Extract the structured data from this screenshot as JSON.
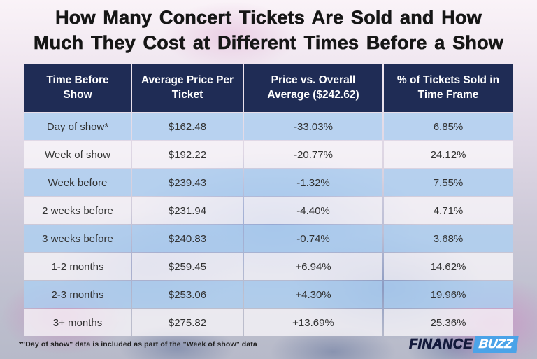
{
  "title": {
    "line1": "How Many Concert Tickets Are Sold and How",
    "line2": "Much They Cost at Different Times Before a Show"
  },
  "table": {
    "headers": [
      "Time Before Show",
      "Average Price Per Ticket",
      "Price vs. Overall Average ($242.62)",
      "% of Tickets Sold in Time Frame"
    ],
    "rows": [
      {
        "time": "Day of show*",
        "price": "$162.48",
        "vs": "-33.03%",
        "pct": "6.85%"
      },
      {
        "time": "Week of show",
        "price": "$192.22",
        "vs": "-20.77%",
        "pct": "24.12%"
      },
      {
        "time": "Week before",
        "price": "$239.43",
        "vs": "-1.32%",
        "pct": "7.55%"
      },
      {
        "time": "2 weeks before",
        "price": "$231.94",
        "vs": "-4.40%",
        "pct": "4.71%"
      },
      {
        "time": "3 weeks before",
        "price": "$240.83",
        "vs": "-0.74%",
        "pct": "3.68%"
      },
      {
        "time": "1-2 months",
        "price": "$259.45",
        "vs": "+6.94%",
        "pct": "14.62%"
      },
      {
        "time": "2-3 months",
        "price": "$253.06",
        "vs": "+4.30%",
        "pct": "19.96%"
      },
      {
        "time": "3+ months",
        "price": "$275.82",
        "vs": "+13.69%",
        "pct": "25.36%"
      }
    ]
  },
  "footnote": "*\"Day of show\" data is included as part of the \"Week of show\" data",
  "logo": {
    "finance": "FINANCE",
    "buzz": "BUZZ"
  },
  "colors": {
    "header_bg": "#1f2c55",
    "row_blue": "#bdd9f3",
    "row_white": "#f8f5f8",
    "logo_navy": "#141a3c",
    "logo_buzz_bg": "#4ba3e8",
    "title_text": "#161616"
  },
  "chart_data": {
    "type": "table",
    "title": "How Many Concert Tickets Are Sold and How Much They Cost at Different Times Before a Show",
    "columns": [
      "Time Before Show",
      "Average Price Per Ticket",
      "Price vs. Overall Average ($242.62)",
      "% of Tickets Sold in Time Frame"
    ],
    "overall_average_price_usd": 242.62,
    "rows": [
      [
        "Day of show*",
        162.48,
        -33.03,
        6.85
      ],
      [
        "Week of show",
        192.22,
        -20.77,
        24.12
      ],
      [
        "Week before",
        239.43,
        -1.32,
        7.55
      ],
      [
        "2 weeks before",
        231.94,
        -4.4,
        4.71
      ],
      [
        "3 weeks before",
        240.83,
        -0.74,
        3.68
      ],
      [
        "1-2 months",
        259.45,
        6.94,
        14.62
      ],
      [
        "2-3 months",
        253.06,
        4.3,
        19.96
      ],
      [
        "3+ months",
        275.82,
        13.69,
        25.36
      ]
    ],
    "footnote": "*\"Day of show\" data is included as part of the \"Week of show\" data"
  }
}
